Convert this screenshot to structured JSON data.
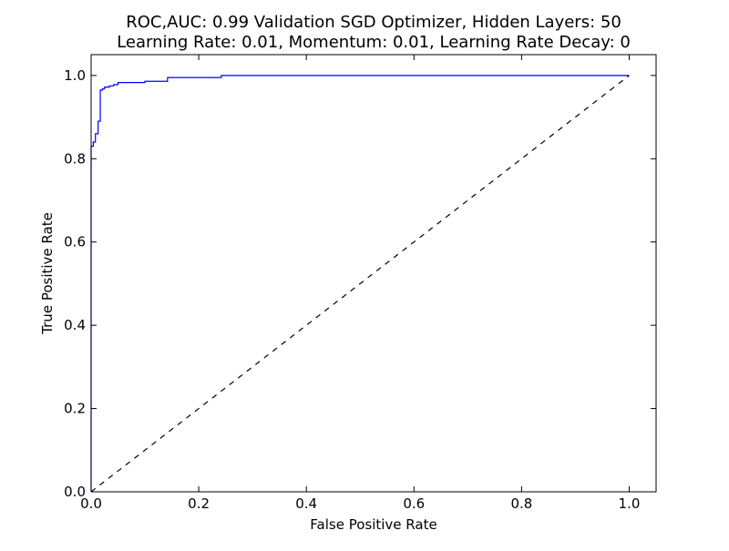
{
  "chart_data": {
    "type": "line",
    "title": "ROC,AUC: 0.99 Validation SGD Optimizer, Hidden Layers: 50",
    "subtitle": "Learning Rate: 0.01, Momentum: 0.01, Learning Rate Decay: 0",
    "xlabel": "False Positive Rate",
    "ylabel": "True Positive Rate",
    "xlim": [
      0.0,
      1.05
    ],
    "ylim": [
      0.0,
      1.05
    ],
    "x_ticks": [
      "0.0",
      "0.2",
      "0.4",
      "0.6",
      "0.8",
      "1.0"
    ],
    "y_ticks": [
      "0.0",
      "0.2",
      "0.4",
      "0.6",
      "0.8",
      "1.0"
    ],
    "grid": false,
    "series": [
      {
        "color": "#0000ff",
        "style": "solid",
        "x": [
          0.0,
          0.0,
          0.004,
          0.004,
          0.008,
          0.008,
          0.013,
          0.013,
          0.017,
          0.017,
          0.021,
          0.021,
          0.025,
          0.025,
          0.034,
          0.034,
          0.042,
          0.042,
          0.05,
          0.05,
          0.1,
          0.1,
          0.142,
          0.142,
          0.242,
          0.242,
          1.0
        ],
        "y": [
          0.0,
          0.83,
          0.83,
          0.84,
          0.84,
          0.86,
          0.86,
          0.89,
          0.89,
          0.965,
          0.965,
          0.968,
          0.968,
          0.972,
          0.972,
          0.975,
          0.975,
          0.978,
          0.978,
          0.983,
          0.983,
          0.986,
          0.986,
          0.995,
          0.995,
          1.0,
          1.0
        ]
      },
      {
        "color": "#000000",
        "style": "dashed",
        "x": [
          0.0,
          1.0
        ],
        "y": [
          0.0,
          1.0
        ]
      }
    ]
  }
}
